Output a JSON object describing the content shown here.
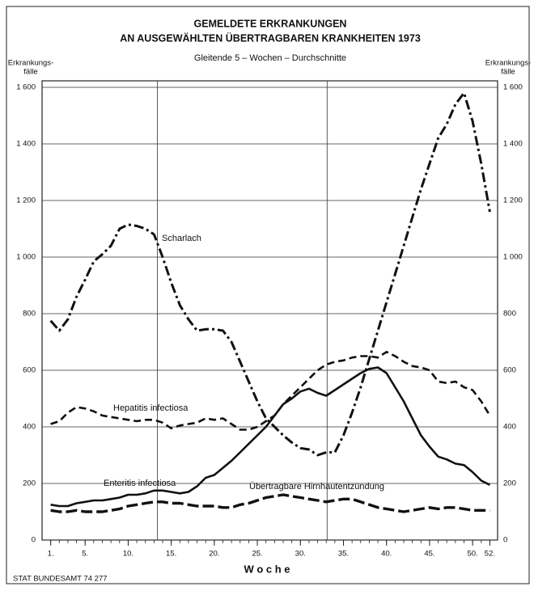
{
  "chart_data": {
    "type": "line",
    "title": [
      "GEMELDETE ERKRANKUNGEN",
      "AN AUSGEWÄHLTEN ÜBERTRAGBAREN KRANKHEITEN 1973"
    ],
    "subtitle": "Gleitende 5 – Wochen – Durchschnitte",
    "ylabel": [
      "Erkrankungs-",
      "fälle"
    ],
    "xlabel": "W o c h e",
    "source": "STAT BUNDESAMT 74 277",
    "x": [
      1,
      2,
      3,
      4,
      5,
      6,
      7,
      8,
      9,
      10,
      11,
      12,
      13,
      14,
      15,
      16,
      17,
      18,
      19,
      20,
      21,
      22,
      23,
      24,
      25,
      26,
      27,
      28,
      29,
      30,
      31,
      32,
      33,
      34,
      35,
      36,
      37,
      38,
      39,
      40,
      41,
      42,
      43,
      44,
      45,
      46,
      47,
      48,
      49,
      50,
      51,
      52
    ],
    "xlim": [
      0,
      52.9
    ],
    "xticks": [
      {
        "value": 1,
        "label": "1."
      },
      {
        "value": 5,
        "label": "5."
      },
      {
        "value": 10,
        "label": "10."
      },
      {
        "value": 15,
        "label": "15."
      },
      {
        "value": 20,
        "label": "20."
      },
      {
        "value": 25,
        "label": "25."
      },
      {
        "value": 30,
        "label": "30."
      },
      {
        "value": 35,
        "label": "35."
      },
      {
        "value": 40,
        "label": "40."
      },
      {
        "value": 45,
        "label": "45."
      },
      {
        "value": 50,
        "label": "50."
      },
      {
        "value": 52,
        "label": "52."
      }
    ],
    "xgrid": [
      13.4,
      33.1
    ],
    "ylim": [
      0,
      1600
    ],
    "yticks": [
      0,
      200,
      400,
      600,
      800,
      {
        "value": 1000,
        "label": "1 000"
      },
      {
        "value": 1200,
        "label": "1 200"
      },
      {
        "value": 1400,
        "label": "1 400"
      },
      {
        "value": 1600,
        "label": "1 600"
      }
    ],
    "grid": true,
    "series": [
      {
        "name": "Scharlach",
        "color": "#111111",
        "line_style": "dash-dot",
        "values": [
          775,
          740,
          780,
          860,
          920,
          985,
          1010,
          1040,
          1100,
          1115,
          1110,
          1100,
          1080,
          1000,
          910,
          830,
          780,
          740,
          745,
          745,
          740,
          700,
          630,
          560,
          490,
          430,
          400,
          370,
          345,
          325,
          320,
          300,
          310,
          310,
          370,
          450,
          540,
          640,
          740,
          840,
          940,
          1040,
          1140,
          1240,
          1330,
          1420,
          1470,
          1540,
          1580,
          1480,
          1330,
          1160
        ]
      },
      {
        "name": "Hepatitis infectiosa",
        "color": "#111111",
        "line_style": "dashed",
        "values": [
          410,
          420,
          450,
          470,
          465,
          455,
          440,
          435,
          430,
          425,
          420,
          425,
          425,
          415,
          395,
          405,
          410,
          415,
          430,
          425,
          430,
          410,
          390,
          390,
          400,
          420,
          440,
          480,
          510,
          540,
          570,
          600,
          620,
          630,
          635,
          645,
          650,
          650,
          645,
          665,
          650,
          630,
          615,
          610,
          600,
          560,
          555,
          560,
          540,
          530,
          490,
          440
        ]
      },
      {
        "name": "Enteritis infectiosa",
        "color": "#111111",
        "line_style": "solid",
        "values": [
          125,
          120,
          120,
          130,
          135,
          140,
          140,
          145,
          150,
          160,
          160,
          165,
          175,
          175,
          170,
          165,
          170,
          190,
          220,
          230,
          255,
          280,
          310,
          340,
          370,
          400,
          440,
          480,
          500,
          525,
          535,
          520,
          510,
          530,
          550,
          570,
          590,
          605,
          610,
          590,
          540,
          490,
          430,
          370,
          330,
          295,
          285,
          270,
          265,
          240,
          210,
          195
        ]
      },
      {
        "name": "Übertragbare Hirnhautentzündung",
        "color": "#111111",
        "line_style": "dashed-thick",
        "values": [
          105,
          100,
          100,
          105,
          100,
          100,
          100,
          105,
          110,
          120,
          125,
          130,
          135,
          135,
          130,
          130,
          125,
          120,
          120,
          120,
          115,
          115,
          125,
          130,
          140,
          150,
          155,
          160,
          155,
          150,
          145,
          140,
          135,
          140,
          145,
          145,
          135,
          125,
          115,
          110,
          105,
          100,
          105,
          110,
          115,
          110,
          115,
          115,
          110,
          105,
          105,
          105
        ]
      }
    ]
  }
}
